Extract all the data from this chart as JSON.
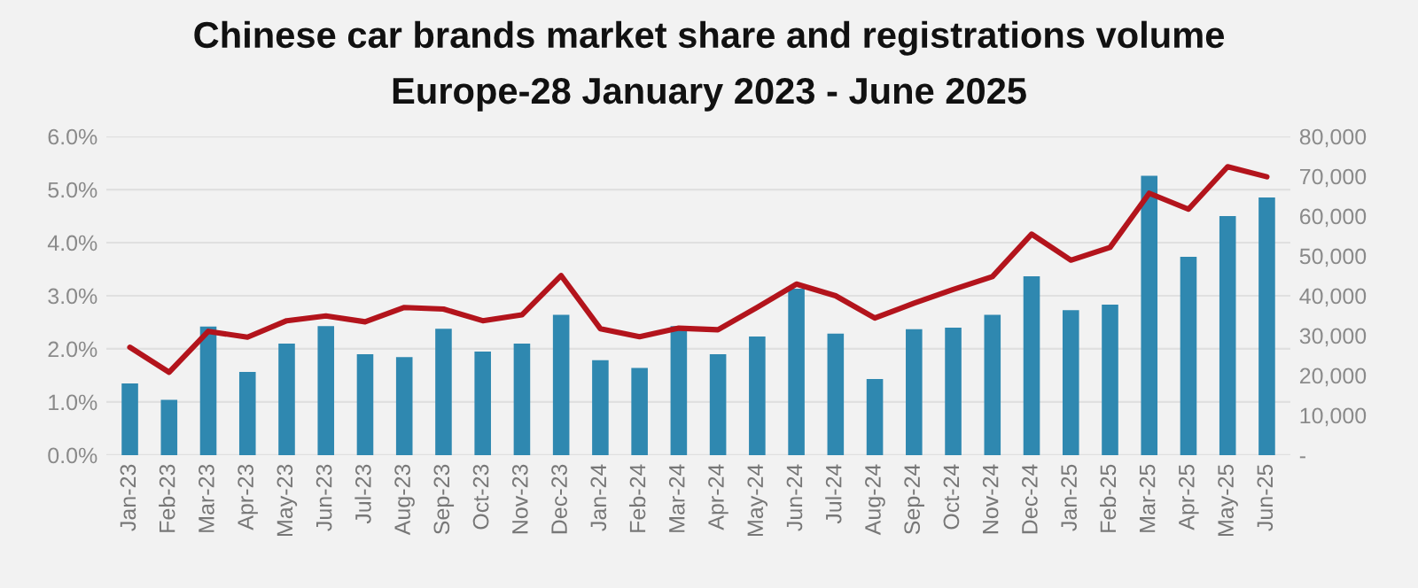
{
  "chart_data": {
    "type": "bar",
    "title": "Chinese car brands market share and registrations volume",
    "subtitle": "Europe-28 January 2023 - June 2025",
    "categories": [
      "Jan-23",
      "Feb-23",
      "Mar-23",
      "Apr-23",
      "May-23",
      "Jun-23",
      "Jul-23",
      "Aug-23",
      "Sep-23",
      "Oct-23",
      "Nov-23",
      "Dec-23",
      "Jan-24",
      "Feb-24",
      "Mar-24",
      "Apr-24",
      "May-24",
      "Jun-24",
      "Jul-24",
      "Aug-24",
      "Sep-24",
      "Oct-24",
      "Nov-24",
      "Dec-24",
      "Jan-25",
      "Feb-25",
      "Mar-25",
      "Apr-25",
      "May-25",
      "Jun-25"
    ],
    "series": [
      {
        "axis": "y2",
        "color": "#2f88b0",
        "values": [
          18000,
          13900,
          32300,
          20900,
          28000,
          32400,
          25300,
          24600,
          31700,
          26000,
          28000,
          35200,
          23800,
          21900,
          32400,
          25300,
          29800,
          41800,
          30500,
          19100,
          31600,
          32000,
          35200,
          44900,
          36400,
          37800,
          70100,
          49800,
          60000,
          64700
        ]
      },
      {
        "type": "line",
        "color": "#b3141c",
        "values": [
          2.03,
          1.56,
          2.33,
          2.22,
          2.53,
          2.62,
          2.51,
          2.78,
          2.75,
          2.53,
          2.64,
          3.38,
          2.38,
          2.23,
          2.39,
          2.36,
          2.78,
          3.22,
          3.0,
          2.58,
          2.86,
          3.12,
          3.36,
          4.16,
          3.67,
          3.91,
          4.93,
          4.63,
          5.43,
          5.24
        ]
      }
    ],
    "ylim": [
      0,
      6
    ],
    "yticks": [
      {
        "value": 0,
        "label": "0.0%"
      },
      {
        "value": 1,
        "label": "1.0%"
      },
      {
        "value": 2,
        "label": "2.0%"
      },
      {
        "value": 3,
        "label": "3.0%"
      },
      {
        "value": 4,
        "label": "4.0%"
      },
      {
        "value": 5,
        "label": "5.0%"
      },
      {
        "value": 6,
        "label": "6.0%"
      }
    ],
    "y2lim": [
      0,
      80000
    ],
    "y2ticks": [
      {
        "value": 0,
        "label": "-"
      },
      {
        "value": 10000,
        "label": "10,000"
      },
      {
        "value": 20000,
        "label": "20,000"
      },
      {
        "value": 30000,
        "label": "30,000"
      },
      {
        "value": 40000,
        "label": "40,000"
      },
      {
        "value": 50000,
        "label": "50,000"
      },
      {
        "value": 60000,
        "label": "60,000"
      },
      {
        "value": 70000,
        "label": "70,000"
      },
      {
        "value": 80000,
        "label": "80,000"
      }
    ],
    "grid": "y",
    "line_style": "solid",
    "marker": "none"
  }
}
